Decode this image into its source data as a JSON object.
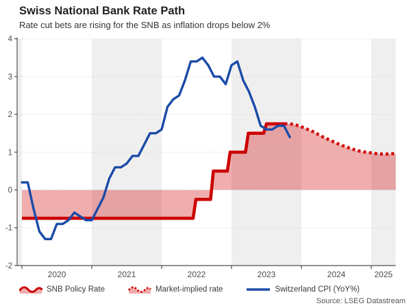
{
  "header": {
    "title": "Swiss National Bank Rate Path",
    "subtitle": "Rate cut bets are rising for the SNB as inflation drops below 2%"
  },
  "source": "Source: LSEG Datastream",
  "colors": {
    "policy_red": "#cc0202",
    "market_red": "#d20b0b",
    "fill_pink": "rgba(204,0,0,0.32)",
    "cpi_blue": "#1a4ba8",
    "band_gray": "#efefef",
    "grid": "#c8c8c8",
    "axis": "#4d4d4d",
    "tick_text": "#4a4a4a"
  },
  "chart_data": {
    "type": "line",
    "title": "Swiss National Bank Rate Path",
    "subtitle": "Rate cut bets are rising for the SNB as inflation drops below 2%",
    "xlabel": "",
    "ylabel": "",
    "ylim": [
      -2,
      4
    ],
    "yticks": [
      4,
      3,
      2,
      1,
      0,
      -1,
      -2
    ],
    "gridline_values": [
      4,
      3,
      2,
      1,
      0,
      -1
    ],
    "x_years": [
      2020,
      2021,
      2022,
      2023,
      2024,
      2025
    ],
    "x_range": [
      2019.93,
      2025.35
    ],
    "shaded_year_bands": [
      [
        2019.93,
        2020
      ],
      [
        2021,
        2022
      ],
      [
        2023,
        2024
      ],
      [
        2025,
        2025.35
      ]
    ],
    "grid": "dotted-horizontal",
    "legend_position": "bottom",
    "series": [
      {
        "name": "SNB Policy Rate",
        "type": "step",
        "fill_to_zero": true,
        "points": [
          [
            2020.0,
            -0.75
          ],
          [
            2022.45,
            -0.75
          ],
          [
            2022.49,
            -0.25
          ],
          [
            2022.7,
            -0.25
          ],
          [
            2022.74,
            0.5
          ],
          [
            2022.94,
            0.5
          ],
          [
            2022.98,
            1.0
          ],
          [
            2023.2,
            1.0
          ],
          [
            2023.24,
            1.5
          ],
          [
            2023.46,
            1.5
          ],
          [
            2023.5,
            1.75
          ],
          [
            2023.76,
            1.75
          ]
        ]
      },
      {
        "name": "Market-implied rate",
        "type": "dotted",
        "fill_to_zero": true,
        "points": [
          [
            2023.76,
            1.75
          ],
          [
            2023.84,
            1.75
          ],
          [
            2023.92,
            1.72
          ],
          [
            2024.0,
            1.67
          ],
          [
            2024.08,
            1.61
          ],
          [
            2024.17,
            1.54
          ],
          [
            2024.25,
            1.46
          ],
          [
            2024.33,
            1.38
          ],
          [
            2024.42,
            1.31
          ],
          [
            2024.5,
            1.24
          ],
          [
            2024.58,
            1.18
          ],
          [
            2024.67,
            1.12
          ],
          [
            2024.75,
            1.07
          ],
          [
            2024.83,
            1.03
          ],
          [
            2024.92,
            1.0
          ],
          [
            2025.0,
            0.98
          ],
          [
            2025.08,
            0.96
          ],
          [
            2025.17,
            0.95
          ],
          [
            2025.25,
            0.95
          ],
          [
            2025.35,
            0.97
          ]
        ]
      },
      {
        "name": "Switzerland CPI (YoY%)",
        "type": "line",
        "x_start_year": 2020,
        "x_step": "monthly",
        "monthly_values": [
          0.2,
          0.2,
          -0.5,
          -1.1,
          -1.3,
          -1.3,
          -0.9,
          -0.9,
          -0.8,
          -0.6,
          -0.7,
          -0.8,
          -0.8,
          -0.5,
          -0.2,
          0.3,
          0.6,
          0.6,
          0.7,
          0.9,
          0.9,
          1.2,
          1.5,
          1.5,
          1.6,
          2.2,
          2.4,
          2.5,
          2.9,
          3.4,
          3.4,
          3.5,
          3.3,
          3.0,
          3.0,
          2.8,
          3.3,
          3.4,
          2.9,
          2.6,
          2.2,
          1.7,
          1.6,
          1.6,
          1.7,
          1.7,
          1.4
        ]
      }
    ]
  }
}
